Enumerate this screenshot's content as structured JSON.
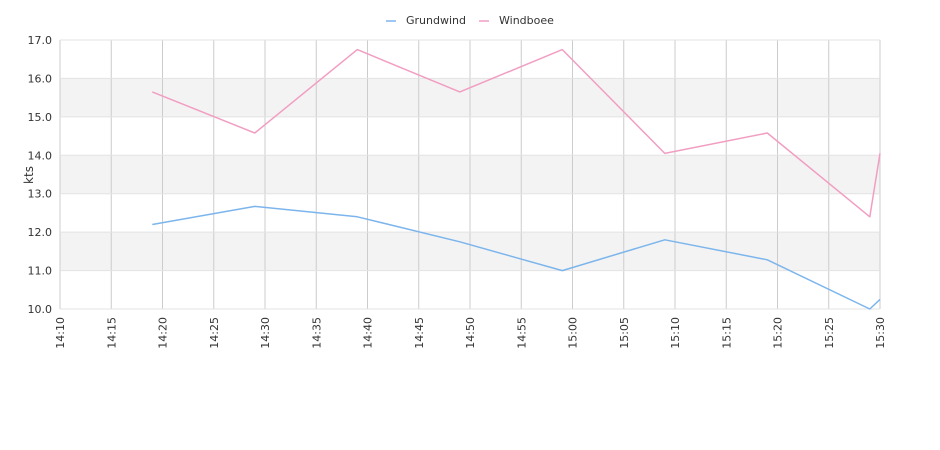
{
  "chart_data": {
    "type": "line",
    "ylabel": "kts",
    "xlabel": "",
    "ylim": [
      10.0,
      17.0
    ],
    "yticks": [
      "10.0",
      "11.0",
      "12.0",
      "13.0",
      "14.0",
      "15.0",
      "16.0",
      "17.0"
    ],
    "xlim": [
      "14:10",
      "15:30"
    ],
    "xticks": [
      "14:10",
      "14:15",
      "14:20",
      "14:25",
      "14:30",
      "14:35",
      "14:40",
      "14:45",
      "14:50",
      "14:55",
      "15:00",
      "15:05",
      "15:10",
      "15:15",
      "15:20",
      "15:25",
      "15:30"
    ],
    "legend_position": "top-center",
    "grid": true,
    "series": [
      {
        "name": "Grundwind",
        "color": "#7cb5ec",
        "points": [
          {
            "x": "14:19",
            "y": 12.2
          },
          {
            "x": "14:29",
            "y": 12.67
          },
          {
            "x": "14:39",
            "y": 12.4
          },
          {
            "x": "14:49",
            "y": 11.75
          },
          {
            "x": "14:59",
            "y": 11.0
          },
          {
            "x": "15:09",
            "y": 11.8
          },
          {
            "x": "15:19",
            "y": 11.28
          },
          {
            "x": "15:29",
            "y": 10.0
          },
          {
            "x": "15:30",
            "y": 10.25
          }
        ]
      },
      {
        "name": "Windboee",
        "color": "#f19ec2",
        "points": [
          {
            "x": "14:19",
            "y": 15.65
          },
          {
            "x": "14:29",
            "y": 14.58
          },
          {
            "x": "14:39",
            "y": 16.75
          },
          {
            "x": "14:49",
            "y": 15.65
          },
          {
            "x": "14:59",
            "y": 16.75
          },
          {
            "x": "15:09",
            "y": 14.05
          },
          {
            "x": "15:19",
            "y": 14.58
          },
          {
            "x": "15:29",
            "y": 12.4
          },
          {
            "x": "15:30",
            "y": 14.05
          }
        ]
      }
    ]
  }
}
